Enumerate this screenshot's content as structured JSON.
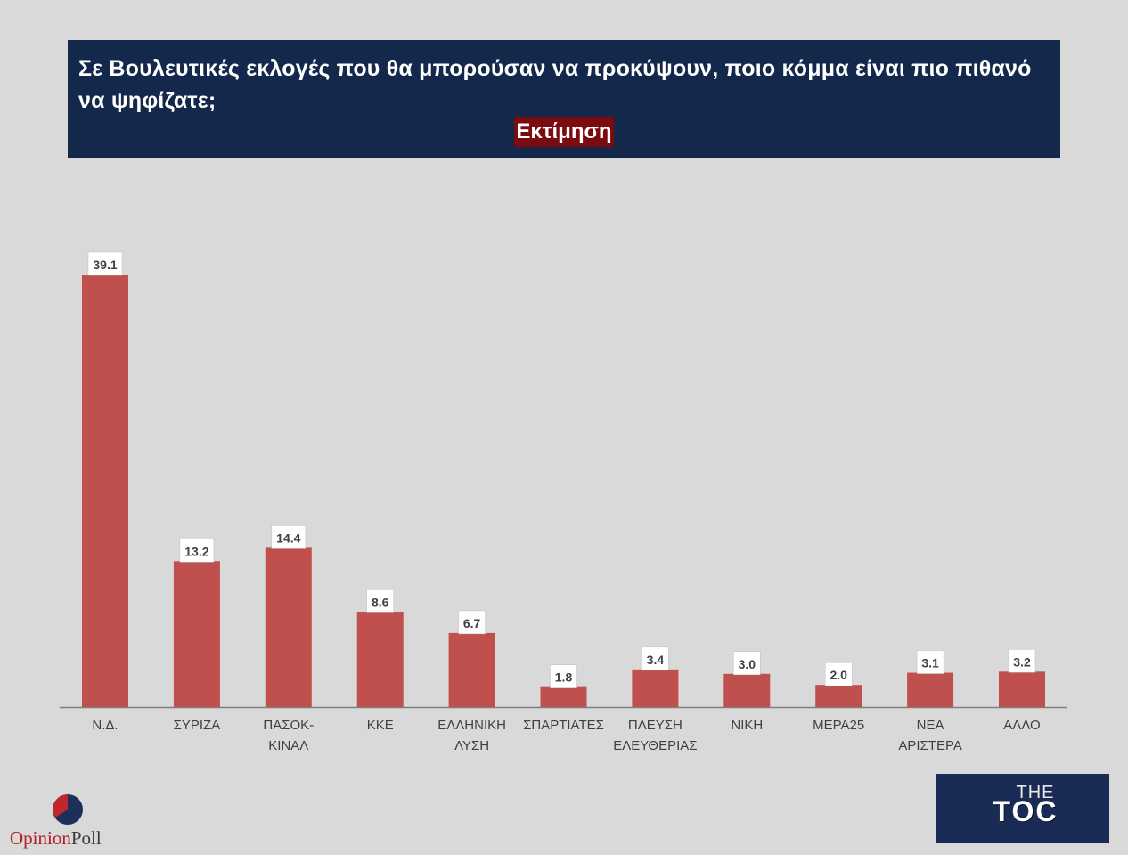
{
  "header": {
    "question": "Σε Βουλευτικές εκλογές που θα μπορούσαν να προκύψουν, ποιο κόμμα είναι πιο πιθανό να ψηφίζατε;",
    "subtitle": "Εκτίμηση"
  },
  "colors": {
    "bar": "#c0504d",
    "header_bg": "#13284a",
    "subtitle_bg": "#7a0b10",
    "background": "#d9d9d9"
  },
  "chart_data": {
    "type": "bar",
    "title": "Σε Βουλευτικές εκλογές που θα μπορούσαν να προκύψουν, ποιο κόμμα είναι πιο πιθανό να ψηφίζατε;",
    "subtitle": "Εκτίμηση",
    "categories": [
      [
        "Ν.Δ."
      ],
      [
        "ΣΥΡΙΖΑ"
      ],
      [
        "ΠΑΣΟΚ-",
        "ΚΙΝΑΛ"
      ],
      [
        "ΚΚΕ"
      ],
      [
        "ΕΛΛΗΝΙΚΗ",
        "ΛΥΣΗ"
      ],
      [
        "ΣΠΑΡΤΙΑΤΕΣ"
      ],
      [
        "ΠΛΕΥΣΗ",
        "ΕΛΕΥΘΕΡΙΑΣ"
      ],
      [
        "ΝΙΚΗ"
      ],
      [
        "ΜΕΡΑ25"
      ],
      [
        "ΝΕΑ",
        "ΑΡΙΣΤΕΡΑ"
      ],
      [
        "ΑΛΛΟ"
      ]
    ],
    "values": [
      39.1,
      13.2,
      14.4,
      8.6,
      6.7,
      1.8,
      3.4,
      3.0,
      2.0,
      3.1,
      3.2
    ],
    "value_labels": [
      "39.1",
      "13.2",
      "14.4",
      "8.6",
      "6.7",
      "1.8",
      "3.4",
      "3.0",
      "2.0",
      "3.1",
      "3.2"
    ],
    "ylim": [
      0,
      39.1
    ],
    "grid": false,
    "legend": "none"
  },
  "logos": {
    "opinionpoll_part1": "Opinion",
    "opinionpoll_part2": "Poll",
    "toc_top": "THE",
    "toc_main": "TOC"
  }
}
